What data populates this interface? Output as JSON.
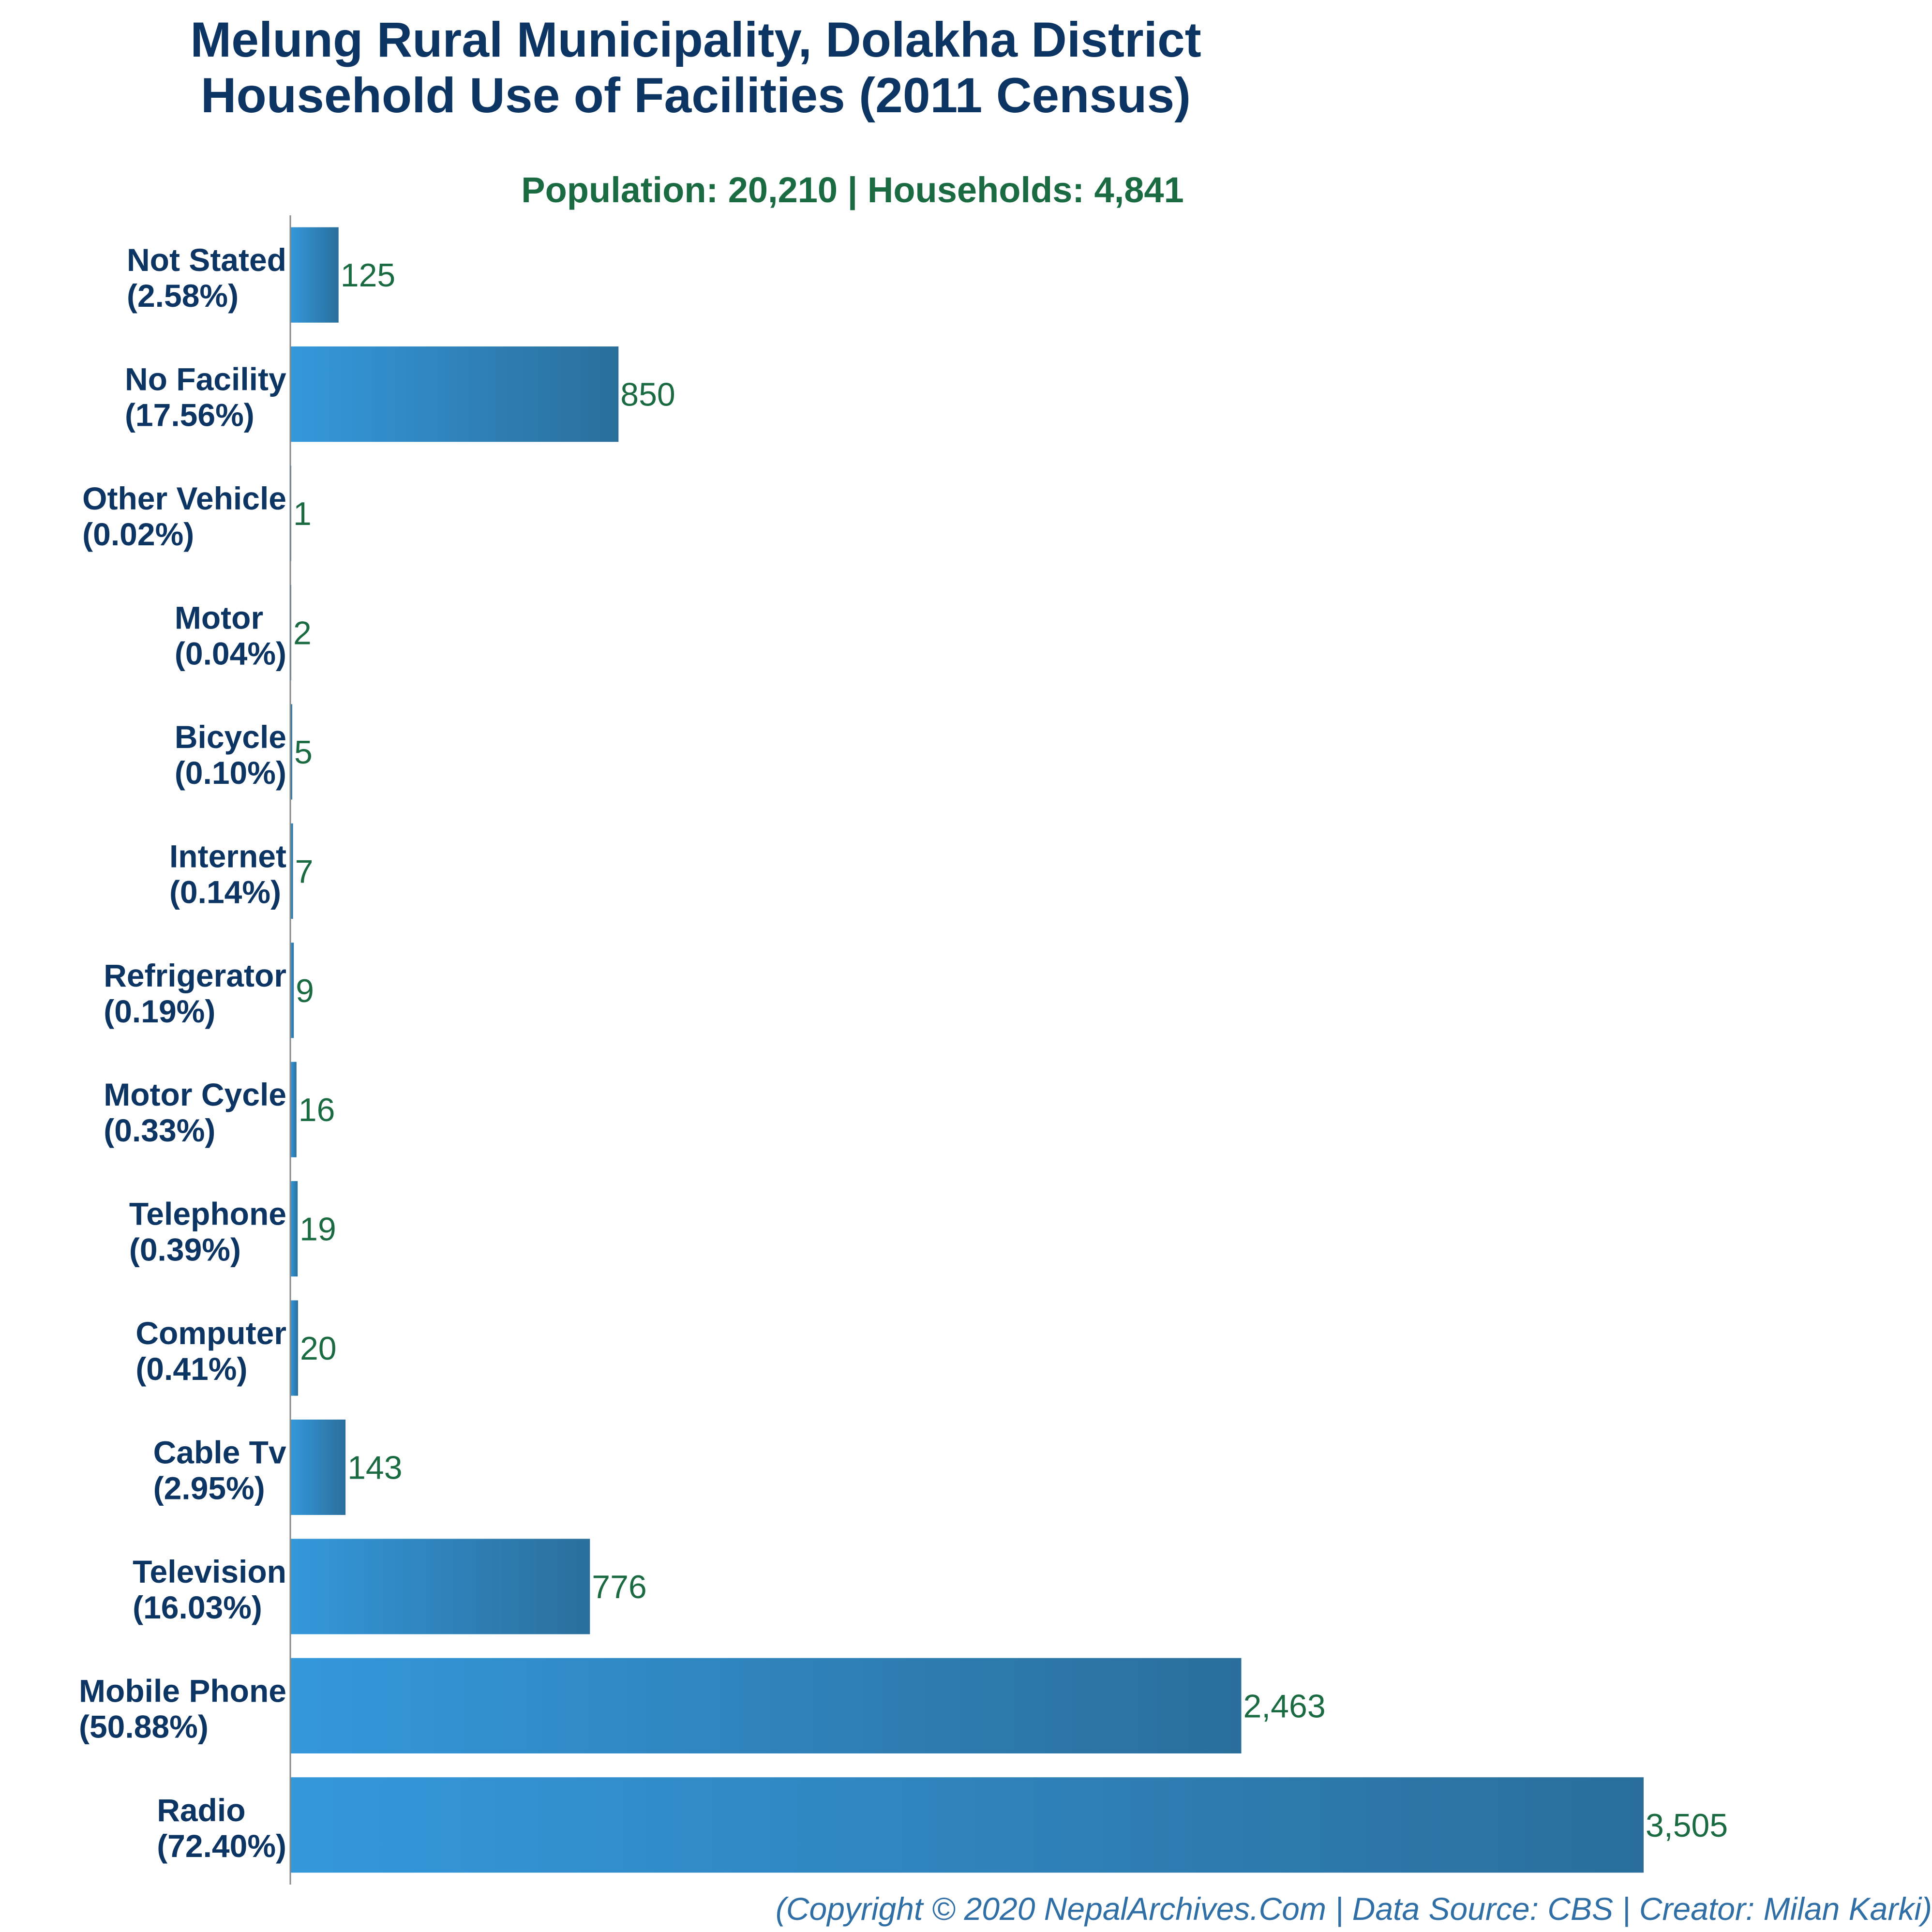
{
  "chart_data": {
    "type": "bar",
    "orientation": "horizontal",
    "title_lines": [
      "Melung Rural Municipality, Dolakha District",
      "Household Use of Facilities (2011 Census)"
    ],
    "subtitle": "Population: 20,210 | Households: 4,841",
    "categories": [
      {
        "name": "Not Stated",
        "pct": "(2.58%)",
        "value": 125,
        "value_label": "125"
      },
      {
        "name": "No Facility",
        "pct": "(17.56%)",
        "value": 850,
        "value_label": "850"
      },
      {
        "name": "Other Vehicle",
        "pct": "(0.02%)",
        "value": 1,
        "value_label": "1"
      },
      {
        "name": "Motor",
        "pct": "(0.04%)",
        "value": 2,
        "value_label": "2"
      },
      {
        "name": "Bicycle",
        "pct": "(0.10%)",
        "value": 5,
        "value_label": "5"
      },
      {
        "name": "Internet",
        "pct": "(0.14%)",
        "value": 7,
        "value_label": "7"
      },
      {
        "name": "Refrigerator",
        "pct": "(0.19%)",
        "value": 9,
        "value_label": "9"
      },
      {
        "name": "Motor Cycle",
        "pct": "(0.33%)",
        "value": 16,
        "value_label": "16"
      },
      {
        "name": "Telephone",
        "pct": "(0.39%)",
        "value": 19,
        "value_label": "19"
      },
      {
        "name": "Computer",
        "pct": "(0.41%)",
        "value": 20,
        "value_label": "20"
      },
      {
        "name": "Cable Tv",
        "pct": "(2.95%)",
        "value": 143,
        "value_label": "143"
      },
      {
        "name": "Television",
        "pct": "(16.03%)",
        "value": 776,
        "value_label": "776"
      },
      {
        "name": "Mobile Phone",
        "pct": "(50.88%)",
        "value": 2463,
        "value_label": "2,463"
      },
      {
        "name": "Radio",
        "pct": "(72.40%)",
        "value": 3505,
        "value_label": "3,505"
      }
    ],
    "xlim": [
      0,
      3505
    ],
    "grid": false,
    "legend": "none",
    "bar_gradient": [
      "#3498db",
      "#2a6f9c"
    ],
    "colors": {
      "title": "#0d3563",
      "subtitle": "#1a6b41",
      "value_label": "#1a6b41",
      "axis": "#888888",
      "footer": "#2f6fa6"
    },
    "footer": "(Copyright © 2020 NepalArchives.Com | Data Source: CBS | Creator: Milan Karki)"
  }
}
